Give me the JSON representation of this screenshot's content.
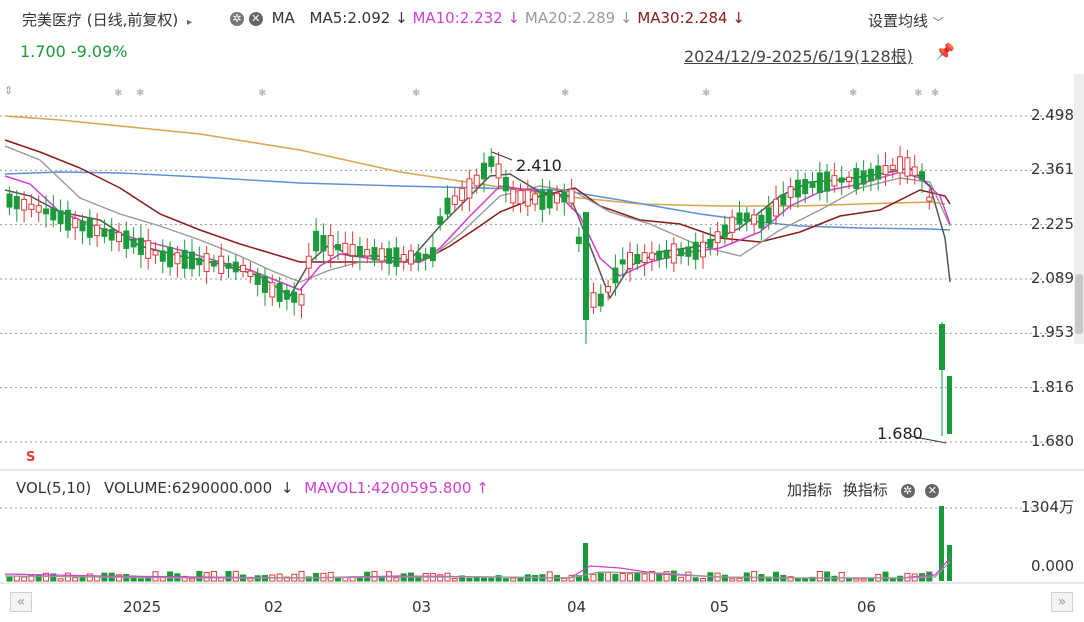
{
  "header": {
    "stock_name": "完美医疗 (日线,前复权)",
    "ma_label": "MA",
    "ma5": "MA5:2.092",
    "ma10": "MA10:2.232",
    "ma20": "MA20:2.289",
    "ma30": "MA30:2.284",
    "arrow_down": "↓",
    "settings_label": "设置均线",
    "price_change": "1.700  -9.09%",
    "date_range": "2024/12/9-2025/6/19(128根)"
  },
  "price_axis": [
    "2.498",
    "2.361",
    "2.225",
    "2.089",
    "1.953",
    "1.816",
    "1.680"
  ],
  "annotations": {
    "high": "2.410",
    "low": "1.680",
    "marker": "S"
  },
  "volume_header": {
    "vol_label": "VOL(5,10)",
    "volume": "VOLUME:6290000.000",
    "arrow_down": "↓",
    "mavol1": "MAVOL1:4200595.800",
    "arrow_up": "↑",
    "add_indicator": "加指标",
    "switch_indicator": "换指标"
  },
  "volume_axis": [
    "1304万",
    "0.000"
  ],
  "x_axis": [
    "2025",
    "02",
    "03",
    "04",
    "05",
    "06"
  ],
  "colors": {
    "up": "#e03a3a",
    "down": "#1a9a3a",
    "ma5": "#555555",
    "ma10": "#d23fd2",
    "ma20": "#999999",
    "ma30": "#8b1a1a",
    "ma60": "#5b8fd6",
    "ma120": "#d8a850"
  },
  "chart_data": {
    "type": "candlestick",
    "ylim": [
      1.68,
      2.498
    ],
    "series": [
      {
        "name": "MA5",
        "values": [
          2.3,
          2.29,
          2.28,
          2.27,
          2.26,
          2.25,
          2.24,
          2.23,
          2.22,
          2.22,
          2.21,
          2.21,
          2.2,
          2.19,
          2.18,
          2.16,
          2.15,
          2.14,
          2.12,
          2.11,
          2.09,
          2.07,
          2.06,
          2.09,
          2.14,
          2.18,
          2.21,
          2.2,
          2.18,
          2.17,
          2.17,
          2.16,
          2.15,
          2.15,
          2.14,
          2.13,
          2.15,
          2.2,
          2.26,
          2.31,
          2.36,
          2.39,
          2.35,
          2.3,
          2.29,
          2.3,
          2.31,
          2.3,
          2.24,
          2.08,
          2.04,
          2.07,
          2.12,
          2.14,
          2.15,
          2.16,
          2.15,
          2.14,
          2.15,
          2.18,
          2.22,
          2.28,
          2.32,
          2.33,
          2.33,
          2.34,
          2.34,
          2.35,
          2.37,
          2.33,
          2.29,
          2.092
        ]
      }
    ]
  }
}
